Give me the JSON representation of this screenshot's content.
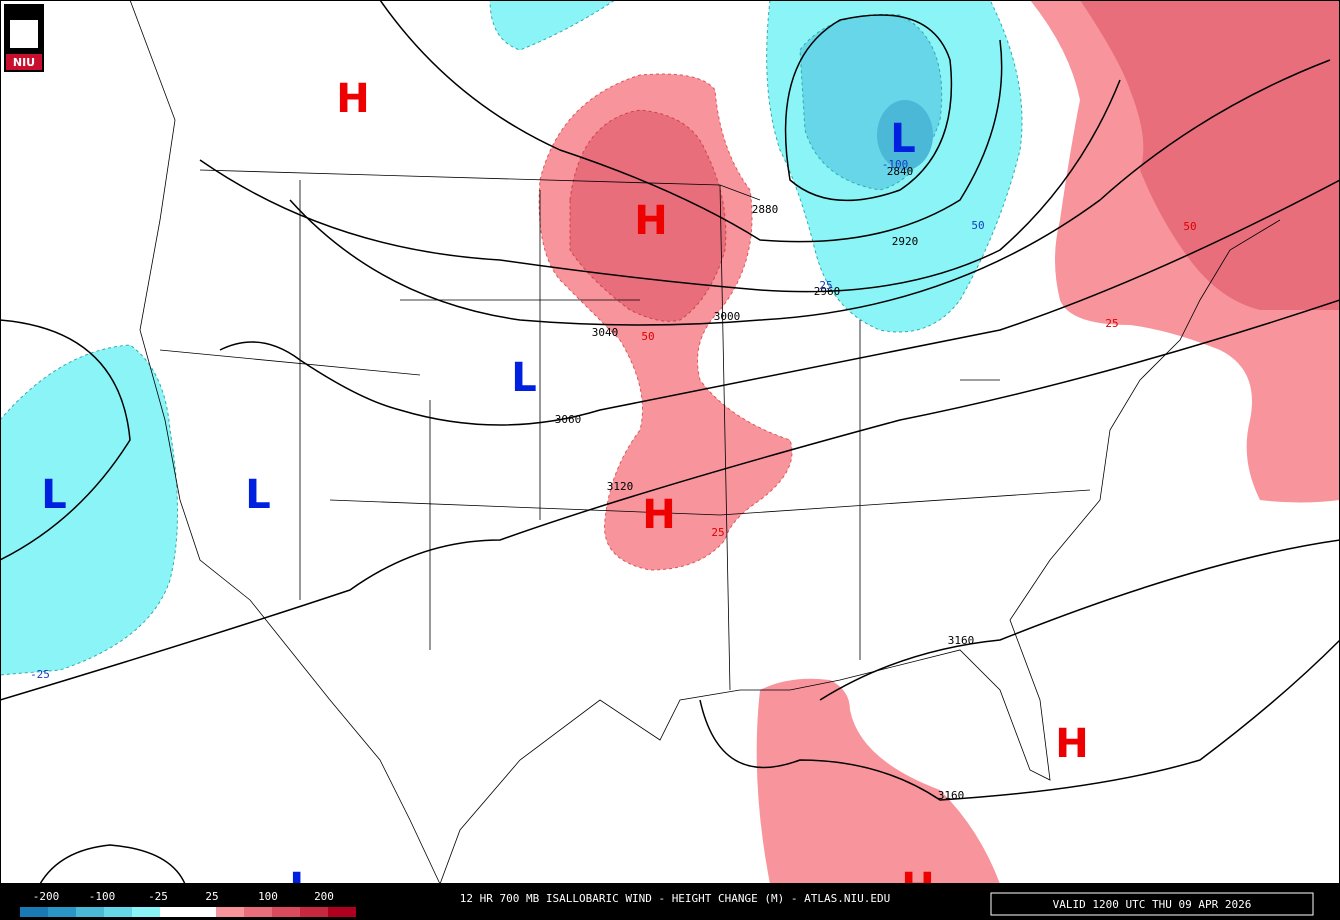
{
  "logo": "NIU",
  "centers": [
    "H",
    "L",
    "H",
    "L",
    "L",
    "L",
    "H",
    "H",
    "L",
    "H"
  ],
  "height_labels": [
    "2840",
    "2880",
    "2920",
    "2960",
    "3000",
    "3040",
    "3060",
    "3120",
    "3160",
    "3160"
  ],
  "change_labels": [
    "-100",
    "50",
    "25",
    "50",
    "25",
    "50",
    "25",
    "-25"
  ],
  "colorbar_labels": [
    "-200",
    "-100",
    "-25",
    "25",
    "100",
    "200"
  ],
  "footer_title": "12 HR 700 MB ISALLOBARIC WIND - HEIGHT CHANGE (M) - ATLAS.NIU.EDU",
  "valid_time": "VALID 1200 UTC THU 09 APR 2026"
}
